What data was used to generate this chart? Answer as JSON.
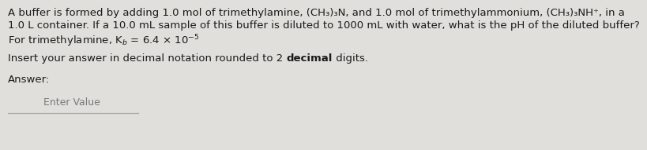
{
  "background_color": "#e0dfdb",
  "text_color": "#1a1a1a",
  "gray_text": "#7a7a7a",
  "line1": "A buffer is formed by adding 1.0 mol of trimethylamine, (CH₃)₃N, and 1.0 mol of trimethylammonium, (CH₃)₃NH⁺, in a",
  "line2": "1.0 L container. If a 10.0 mL sample of this buffer is diluted to 1000 mL with water, what is the pH of the diluted buffer?",
  "line3_math": "For trimethylamine, K$_b$ = 6.4 × 10$^{-5}$",
  "instruction_prefix": "Insert your answer in decimal notation rounded to 2 ",
  "instruction_bold": "decimal",
  "instruction_suffix": " digits.",
  "answer_label": "Answer:",
  "enter_value": "Enter Value",
  "font_size_main": 9.5,
  "font_size_enter": 9.0,
  "line_color": "#aaaaaa"
}
